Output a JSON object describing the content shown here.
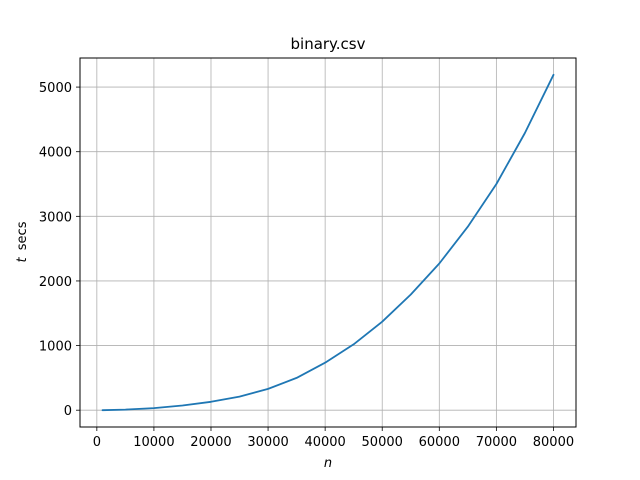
{
  "chart_data": {
    "type": "line",
    "title": "binary.csv",
    "xlabel_var": "n",
    "ylabel_var": "t",
    "ylabel_unit": "secs",
    "xlim": [
      -2950,
      83950
    ],
    "ylim": [
      -260,
      5450
    ],
    "x_ticks": [
      0,
      10000,
      20000,
      30000,
      40000,
      50000,
      60000,
      70000,
      80000
    ],
    "x_tick_labels": [
      "0",
      "10000",
      "20000",
      "30000",
      "40000",
      "50000",
      "60000",
      "70000",
      "80000"
    ],
    "y_ticks": [
      0,
      1000,
      2000,
      3000,
      4000,
      5000
    ],
    "y_tick_labels": [
      "0",
      "1000",
      "2000",
      "3000",
      "4000",
      "5000"
    ],
    "grid": true,
    "series": [
      {
        "color": "#1f77b4",
        "x": [
          1000,
          5000,
          10000,
          15000,
          20000,
          25000,
          30000,
          35000,
          40000,
          45000,
          50000,
          55000,
          60000,
          65000,
          70000,
          75000,
          80000
        ],
        "y": [
          0,
          10,
          33,
          72,
          130,
          210,
          330,
          500,
          735,
          1020,
          1370,
          1790,
          2270,
          2840,
          3500,
          4290,
          5190
        ]
      }
    ]
  }
}
